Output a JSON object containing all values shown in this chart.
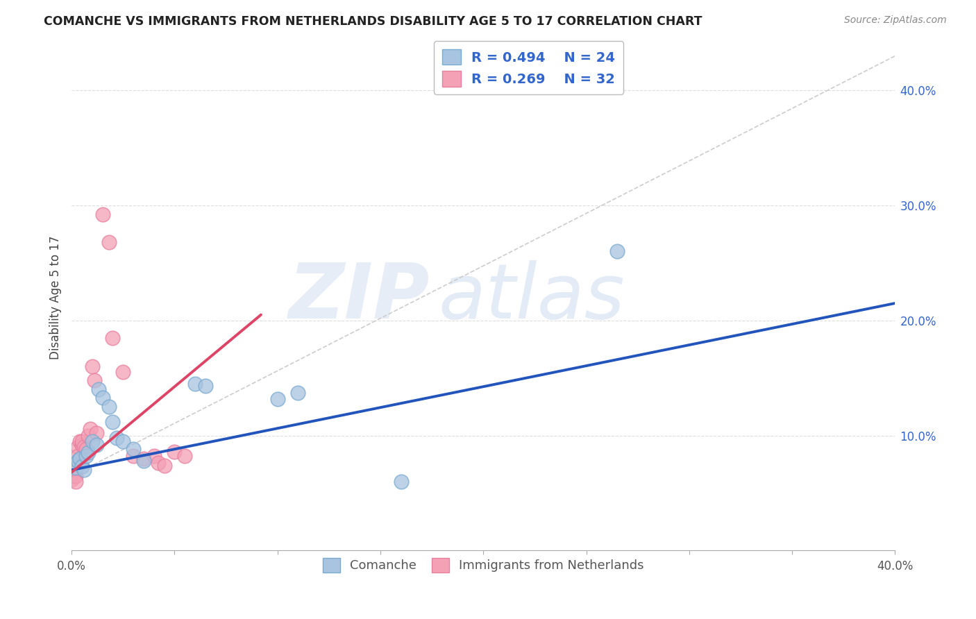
{
  "title": "COMANCHE VS IMMIGRANTS FROM NETHERLANDS DISABILITY AGE 5 TO 17 CORRELATION CHART",
  "source": "Source: ZipAtlas.com",
  "ylabel": "Disability Age 5 to 17",
  "xlim": [
    0.0,
    0.4
  ],
  "ylim": [
    0.0,
    0.44
  ],
  "x_ticks": [
    0.0,
    0.05,
    0.1,
    0.15,
    0.2,
    0.25,
    0.3,
    0.35,
    0.4
  ],
  "y_ticks_right": [
    0.0,
    0.1,
    0.2,
    0.3,
    0.4
  ],
  "y_tick_labels_right": [
    "",
    "10.0%",
    "20.0%",
    "30.0%",
    "40.0%"
  ],
  "comanche_color": "#a8c4e0",
  "comanche_edge": "#7aaad0",
  "netherlands_color": "#f4a0b5",
  "netherlands_edge": "#e880a0",
  "line_blue": "#2255bb",
  "line_pink": "#dd4466",
  "line_dashed_color": "#cccccc",
  "watermark_zip": "ZIP",
  "watermark_atlas": "atlas",
  "comanche_x": [
    0.001,
    0.002,
    0.003,
    0.004,
    0.005,
    0.006,
    0.007,
    0.008,
    0.01,
    0.012,
    0.013,
    0.015,
    0.018,
    0.02,
    0.022,
    0.025,
    0.03,
    0.035,
    0.06,
    0.065,
    0.1,
    0.11,
    0.16,
    0.265
  ],
  "comanche_y": [
    0.075,
    0.072,
    0.078,
    0.08,
    0.073,
    0.07,
    0.082,
    0.085,
    0.095,
    0.092,
    0.14,
    0.133,
    0.125,
    0.112,
    0.098,
    0.095,
    0.088,
    0.078,
    0.145,
    0.143,
    0.132,
    0.137,
    0.06,
    0.26
  ],
  "netherlands_x": [
    0.0,
    0.0,
    0.001,
    0.001,
    0.001,
    0.002,
    0.002,
    0.002,
    0.003,
    0.003,
    0.004,
    0.004,
    0.005,
    0.005,
    0.006,
    0.007,
    0.008,
    0.009,
    0.01,
    0.011,
    0.012,
    0.015,
    0.018,
    0.02,
    0.025,
    0.03,
    0.035,
    0.04,
    0.042,
    0.045,
    0.05,
    0.055
  ],
  "netherlands_y": [
    0.073,
    0.062,
    0.068,
    0.065,
    0.075,
    0.07,
    0.065,
    0.06,
    0.09,
    0.082,
    0.095,
    0.08,
    0.092,
    0.095,
    0.09,
    0.088,
    0.1,
    0.106,
    0.16,
    0.148,
    0.102,
    0.292,
    0.268,
    0.185,
    0.155,
    0.082,
    0.08,
    0.082,
    0.076,
    0.074,
    0.086,
    0.082
  ],
  "blue_line_x": [
    0.0,
    0.4
  ],
  "blue_line_y": [
    0.07,
    0.215
  ],
  "pink_line_x": [
    0.0,
    0.092
  ],
  "pink_line_y": [
    0.068,
    0.205
  ],
  "dashed_line_x": [
    0.0,
    0.4
  ],
  "dashed_line_y": [
    0.065,
    0.43
  ]
}
